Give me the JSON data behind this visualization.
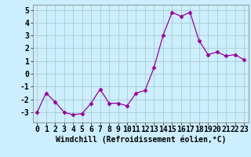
{
  "x": [
    0,
    1,
    2,
    3,
    4,
    5,
    6,
    7,
    8,
    9,
    10,
    11,
    12,
    13,
    14,
    15,
    16,
    17,
    18,
    19,
    20,
    21,
    22,
    23
  ],
  "y": [
    -3.0,
    -1.5,
    -2.2,
    -3.0,
    -3.2,
    -3.1,
    -2.3,
    -1.2,
    -2.3,
    -2.3,
    -2.5,
    -1.5,
    -1.3,
    0.5,
    3.0,
    4.8,
    4.5,
    4.8,
    2.6,
    1.5,
    1.7,
    1.4,
    1.5,
    1.1
  ],
  "line_color": "#990099",
  "marker": "D",
  "marker_size": 2.5,
  "background_color": "#cceeff",
  "grid_color": "#aacccc",
  "xlabel": "Windchill (Refroidissement éolien,°C)",
  "xlabel_fontsize": 7,
  "tick_fontsize": 7,
  "ylim": [
    -3.8,
    5.4
  ],
  "yticks": [
    -3,
    -2,
    -1,
    0,
    1,
    2,
    3,
    4,
    5
  ],
  "xlim": [
    -0.5,
    23.5
  ],
  "xticks": [
    0,
    1,
    2,
    3,
    4,
    5,
    6,
    7,
    8,
    9,
    10,
    11,
    12,
    13,
    14,
    15,
    16,
    17,
    18,
    19,
    20,
    21,
    22,
    23
  ]
}
